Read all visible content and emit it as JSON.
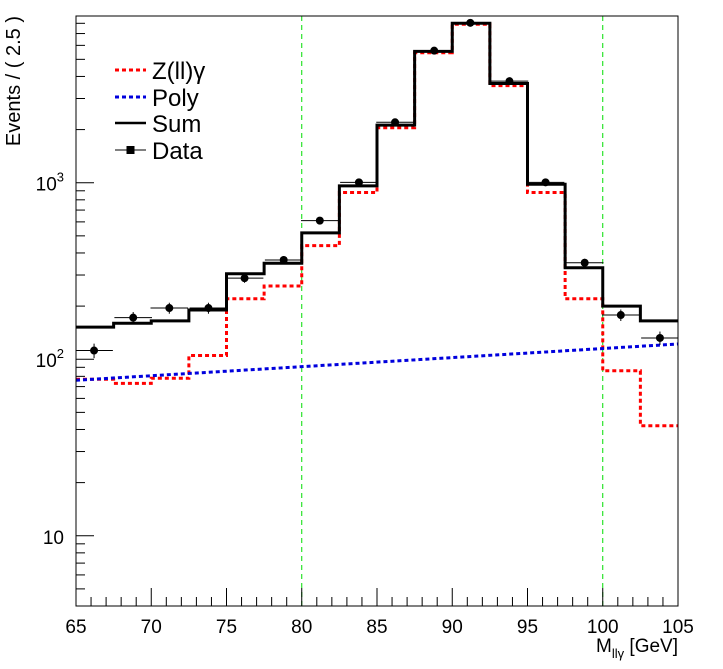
{
  "chart_data": {
    "type": "step",
    "title": "",
    "xlabel_main": "M",
    "xlabel_sub": "llγ",
    "xlabel_unit": "[GeV]",
    "ylabel": "Events / ( 2.5 )",
    "xlim": [
      65,
      105
    ],
    "ylim": [
      4,
      8800
    ],
    "yscale": "log",
    "x_ticks": [
      {
        "v": 65,
        "label": "65"
      },
      {
        "v": 70,
        "label": "70"
      },
      {
        "v": 75,
        "label": "75"
      },
      {
        "v": 80,
        "label": "80"
      },
      {
        "v": 85,
        "label": "85"
      },
      {
        "v": 90,
        "label": "90"
      },
      {
        "v": 95,
        "label": "95"
      },
      {
        "v": 100,
        "label": "100"
      },
      {
        "v": 105,
        "label": "105"
      }
    ],
    "y_ticks": [
      {
        "v": 10,
        "base": "10",
        "exp": ""
      },
      {
        "v": 100,
        "base": "10",
        "exp": "2"
      },
      {
        "v": 1000,
        "base": "10",
        "exp": "3"
      }
    ],
    "grid": false,
    "legend_position": "top-left",
    "vertical_lines": [
      80,
      100
    ],
    "bin_edges": [
      65,
      67.5,
      70,
      72.5,
      75,
      77.5,
      80,
      82.5,
      85,
      87.5,
      90,
      92.5,
      95,
      97.5,
      100,
      102.5,
      105
    ],
    "series": [
      {
        "name": "Z(ll)γ",
        "style": "dashed",
        "color": "#ff0000",
        "values": [
          77,
          73,
          78,
          105,
          220,
          260,
          440,
          880,
          2050,
          5450,
          7900,
          3550,
          880,
          220,
          86,
          42
        ]
      },
      {
        "name": "Poly",
        "style": "dashed-line",
        "color": "#0000dd",
        "x": [
          65,
          105
        ],
        "values": [
          76,
          122
        ]
      },
      {
        "name": "Sum",
        "style": "solid",
        "color": "#000000",
        "values": [
          152,
          160,
          165,
          190,
          305,
          350,
          520,
          960,
          2120,
          5550,
          8000,
          3650,
          980,
          330,
          200,
          165
        ]
      },
      {
        "name": "Data",
        "style": "points",
        "color": "#000000",
        "x": [
          66.2,
          68.8,
          71.2,
          73.8,
          76.2,
          78.8,
          81.2,
          83.8,
          86.2,
          88.8,
          91.2,
          93.8,
          96.2,
          98.8,
          101.2,
          103.8
        ],
        "xerr": 1.25,
        "values": [
          112,
          172,
          195,
          195,
          288,
          365,
          610,
          1005,
          2200,
          5600,
          8050,
          3760,
          1005,
          352,
          178,
          132
        ]
      }
    ]
  }
}
